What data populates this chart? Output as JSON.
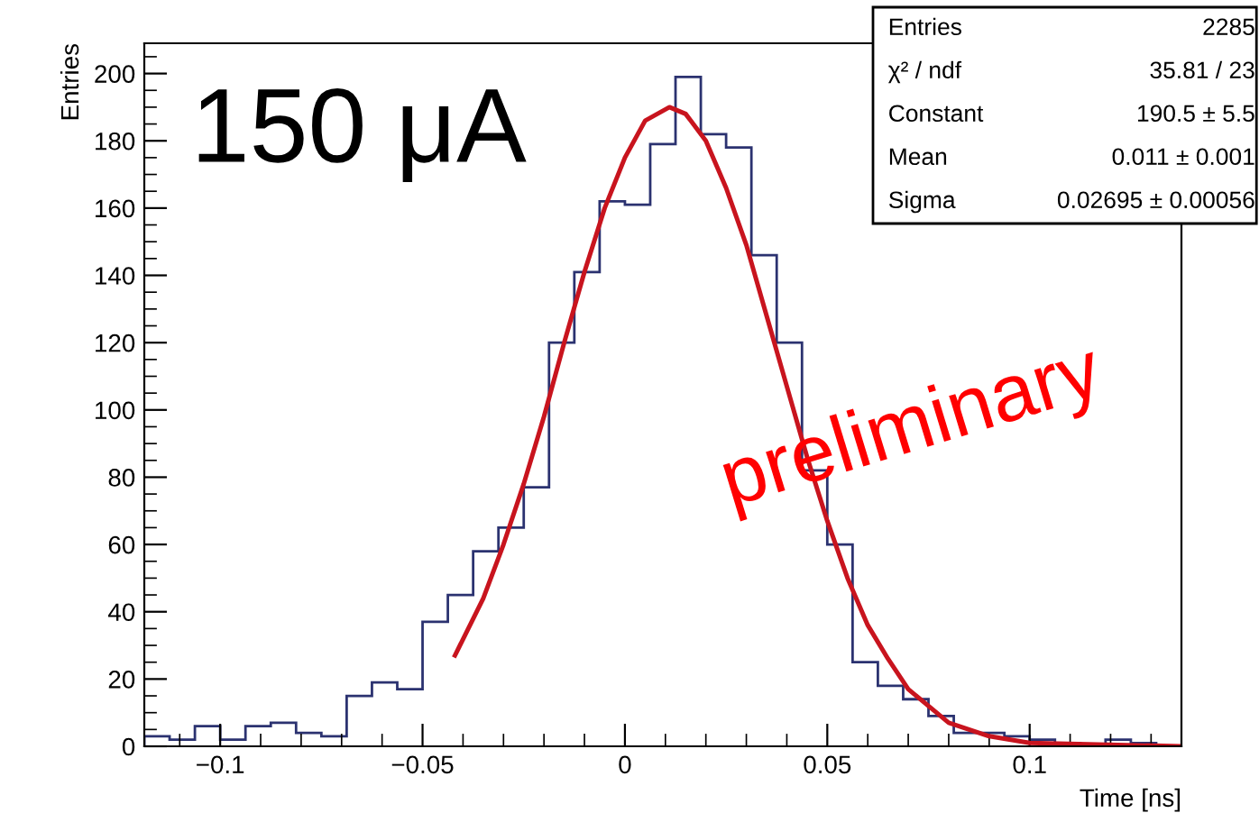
{
  "chart_data": {
    "type": "histogram",
    "xlabel": "Time [ns]",
    "ylabel": "Entries",
    "bins": [
      -0.11875,
      -0.1125,
      -0.10625,
      -0.1,
      -0.09375,
      -0.0875,
      -0.08125,
      -0.075,
      -0.06875,
      -0.0625,
      -0.05625,
      -0.05,
      -0.04375,
      -0.0375,
      -0.03125,
      -0.025,
      -0.01875,
      -0.0125,
      -0.00625,
      0,
      0.00625,
      0.0125,
      0.01875,
      0.025,
      0.03125,
      0.0375,
      0.04375,
      0.05,
      0.05625,
      0.0625,
      0.06875,
      0.075,
      0.08125,
      0.0875,
      0.09375,
      0.1,
      0.10625,
      0.1125,
      0.11875,
      0.125,
      0.13125,
      0.1375
    ],
    "values": [
      3,
      2,
      6,
      2,
      6,
      7,
      4,
      3,
      15,
      19,
      17,
      37,
      45,
      58,
      65,
      77,
      120,
      141,
      162,
      161,
      179,
      199,
      182,
      178,
      146,
      120,
      82,
      60,
      25,
      18,
      14,
      9,
      4,
      4,
      3,
      2,
      1,
      0,
      2,
      1,
      0
    ],
    "color": "#2b3270",
    "series": [
      {
        "type": "line",
        "color": "#c8141e",
        "x": [
          -0.042,
          -0.035,
          -0.03,
          -0.025,
          -0.02,
          -0.015,
          -0.01,
          -0.005,
          0,
          0.005,
          0.011,
          0.015,
          0.02,
          0.025,
          0.03,
          0.035,
          0.04,
          0.045,
          0.05,
          0.055,
          0.06,
          0.065,
          0.07,
          0.08,
          0.09,
          0.1,
          0.1375
        ],
        "values": [
          27,
          44,
          60,
          78,
          98,
          120,
          141,
          160,
          175,
          186,
          190,
          188,
          180,
          166,
          149,
          128,
          107,
          86,
          67,
          50,
          36,
          26,
          17,
          7,
          3,
          1,
          0
        ]
      }
    ],
    "xlim": [
      -0.11875,
      0.1375
    ],
    "ylim": [
      0,
      209
    ],
    "xticks": [
      {
        "value": -0.1,
        "label": "−0.1"
      },
      {
        "value": -0.05,
        "label": "−0.05"
      },
      0,
      0.05,
      0.1
    ],
    "yticks": [
      0,
      20,
      40,
      60,
      80,
      100,
      120,
      140,
      160,
      180,
      200
    ],
    "grid": false,
    "legend": false,
    "annotations": [
      "150 μA",
      "preliminary",
      "Entries\t2285",
      "χ² / ndf\t35.81 / 23",
      "Constant\t190.5 ± 5.5",
      "Mean\t0.011 ± 0.001",
      "Sigma\t0.02695 ± 0.00056"
    ]
  }
}
